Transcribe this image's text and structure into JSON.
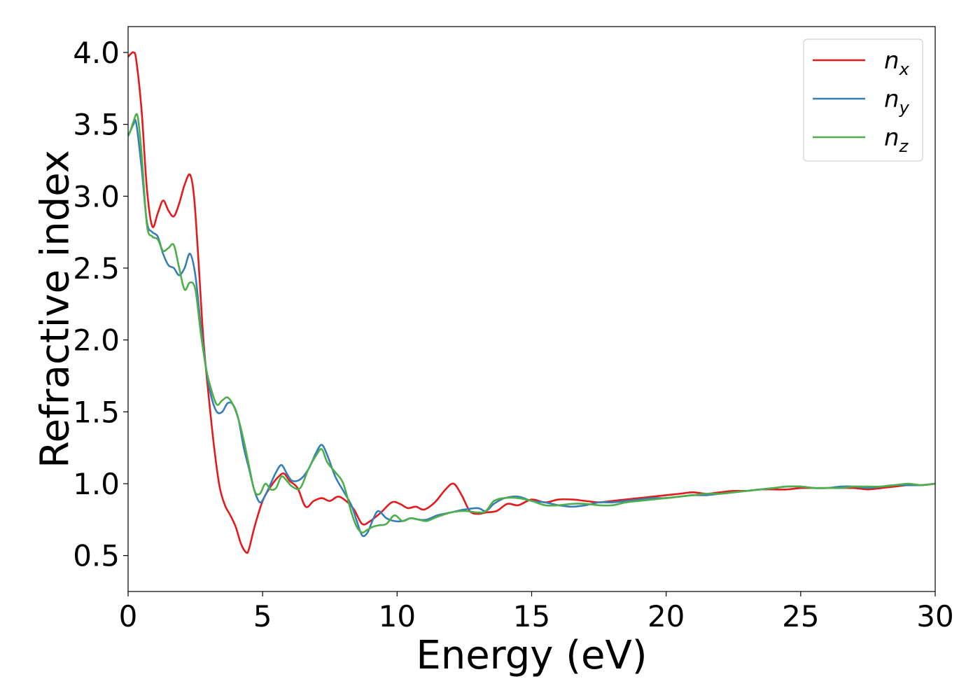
{
  "chart_data": {
    "type": "line",
    "title": "",
    "xlabel": "Energy (eV)",
    "ylabel": "Refractive index",
    "xlim": [
      0,
      30
    ],
    "ylim": [
      0.25,
      4.18
    ],
    "xticks": [
      0,
      5,
      10,
      15,
      20,
      25,
      30
    ],
    "xtick_labels": [
      "0",
      "5",
      "10",
      "15",
      "20",
      "25",
      "30"
    ],
    "yticks": [
      0.5,
      1.0,
      1.5,
      2.0,
      2.5,
      3.0,
      3.5,
      4.0
    ],
    "ytick_labels": [
      "0.5",
      "1.0",
      "1.5",
      "2.0",
      "2.5",
      "3.0",
      "3.5",
      "4.0"
    ],
    "grid": false,
    "legend_position": "top-right",
    "series": [
      {
        "name": "n_x",
        "label_base": "n",
        "label_sub": "x",
        "color": "#e41a1c",
        "x": [
          0,
          0.1,
          0.2,
          0.3,
          0.5,
          0.7,
          0.9,
          1.1,
          1.3,
          1.5,
          1.7,
          1.9,
          2.1,
          2.3,
          2.45,
          2.6,
          2.8,
          3.0,
          3.2,
          3.4,
          3.6,
          3.8,
          4.0,
          4.2,
          4.4,
          4.5,
          4.7,
          5.0,
          5.3,
          5.6,
          5.8,
          6.0,
          6.3,
          6.6,
          6.9,
          7.2,
          7.5,
          7.8,
          8.1,
          8.4,
          8.7,
          9.0,
          9.4,
          9.8,
          10.1,
          10.4,
          10.7,
          11.0,
          11.4,
          11.8,
          12.1,
          12.4,
          12.7,
          13.0,
          13.3,
          13.7,
          14.1,
          14.5,
          15.0,
          15.5,
          16.0,
          16.5,
          17.0,
          17.5,
          18.0,
          18.5,
          19.0,
          19.5,
          20.0,
          20.5,
          21.0,
          21.5,
          22.0,
          22.5,
          23.0,
          23.5,
          24.0,
          24.5,
          25.0,
          25.5,
          26.0,
          26.5,
          27.0,
          27.5,
          28.0,
          28.5,
          29.0,
          29.5,
          30.0
        ],
        "y": [
          3.97,
          3.99,
          4.0,
          3.95,
          3.6,
          3.05,
          2.79,
          2.88,
          2.97,
          2.9,
          2.86,
          2.95,
          3.08,
          3.15,
          3.0,
          2.6,
          2.0,
          1.6,
          1.25,
          0.98,
          0.85,
          0.78,
          0.7,
          0.58,
          0.52,
          0.55,
          0.7,
          0.88,
          0.98,
          1.05,
          1.07,
          1.02,
          0.97,
          0.84,
          0.88,
          0.9,
          0.88,
          0.91,
          0.88,
          0.82,
          0.72,
          0.74,
          0.8,
          0.87,
          0.86,
          0.83,
          0.84,
          0.82,
          0.87,
          0.96,
          1.0,
          0.92,
          0.81,
          0.79,
          0.8,
          0.81,
          0.86,
          0.85,
          0.89,
          0.87,
          0.89,
          0.89,
          0.88,
          0.87,
          0.88,
          0.89,
          0.9,
          0.91,
          0.92,
          0.93,
          0.94,
          0.93,
          0.94,
          0.95,
          0.95,
          0.96,
          0.96,
          0.96,
          0.97,
          0.97,
          0.97,
          0.97,
          0.97,
          0.96,
          0.97,
          0.98,
          0.99,
          0.99,
          1.0
        ]
      },
      {
        "name": "n_y",
        "label_base": "n",
        "label_sub": "y",
        "color": "#377eb8",
        "x": [
          0,
          0.1,
          0.2,
          0.3,
          0.5,
          0.7,
          0.9,
          1.1,
          1.3,
          1.5,
          1.7,
          1.9,
          2.1,
          2.3,
          2.5,
          2.7,
          2.9,
          3.1,
          3.3,
          3.5,
          3.7,
          3.9,
          4.1,
          4.3,
          4.5,
          4.7,
          4.9,
          5.1,
          5.3,
          5.5,
          5.7,
          5.9,
          6.1,
          6.4,
          6.7,
          7.0,
          7.2,
          7.4,
          7.7,
          8.0,
          8.3,
          8.5,
          8.7,
          8.9,
          9.1,
          9.3,
          9.6,
          9.9,
          10.2,
          10.5,
          10.8,
          11.1,
          11.5,
          12.0,
          12.5,
          13.0,
          13.3,
          13.6,
          14.0,
          14.5,
          15.0,
          15.5,
          16.0,
          16.5,
          17.0,
          17.5,
          18.0,
          18.5,
          19.0,
          19.5,
          20.0,
          20.5,
          21.0,
          21.5,
          22.0,
          22.5,
          23.0,
          23.5,
          24.0,
          24.5,
          25.0,
          25.5,
          26.0,
          26.5,
          27.0,
          27.5,
          28.0,
          28.5,
          29.0,
          29.5,
          30.0
        ],
        "y": [
          3.42,
          3.46,
          3.5,
          3.51,
          3.2,
          2.82,
          2.75,
          2.72,
          2.6,
          2.52,
          2.5,
          2.45,
          2.5,
          2.6,
          2.45,
          2.1,
          1.8,
          1.6,
          1.5,
          1.5,
          1.56,
          1.55,
          1.45,
          1.25,
          1.1,
          0.95,
          0.87,
          0.92,
          1.0,
          1.08,
          1.13,
          1.07,
          1.02,
          1.03,
          1.1,
          1.22,
          1.27,
          1.2,
          1.05,
          0.95,
          0.85,
          0.74,
          0.64,
          0.66,
          0.75,
          0.81,
          0.76,
          0.74,
          0.74,
          0.76,
          0.75,
          0.75,
          0.78,
          0.8,
          0.82,
          0.83,
          0.81,
          0.86,
          0.9,
          0.91,
          0.88,
          0.87,
          0.85,
          0.84,
          0.85,
          0.87,
          0.87,
          0.88,
          0.89,
          0.9,
          0.9,
          0.91,
          0.92,
          0.92,
          0.93,
          0.94,
          0.95,
          0.96,
          0.97,
          0.98,
          0.98,
          0.97,
          0.97,
          0.98,
          0.98,
          0.97,
          0.98,
          0.99,
          0.99,
          0.99,
          1.0
        ]
      },
      {
        "name": "n_z",
        "label_base": "n",
        "label_sub": "z",
        "color": "#4daf4a",
        "x": [
          0,
          0.1,
          0.2,
          0.35,
          0.5,
          0.7,
          0.9,
          1.1,
          1.3,
          1.5,
          1.7,
          1.9,
          2.1,
          2.3,
          2.5,
          2.7,
          2.9,
          3.1,
          3.3,
          3.5,
          3.7,
          3.9,
          4.1,
          4.3,
          4.5,
          4.7,
          4.9,
          5.1,
          5.3,
          5.5,
          5.7,
          5.9,
          6.1,
          6.4,
          6.7,
          7.0,
          7.2,
          7.4,
          7.7,
          8.0,
          8.3,
          8.5,
          8.7,
          8.9,
          9.1,
          9.3,
          9.6,
          9.9,
          10.2,
          10.5,
          10.8,
          11.1,
          11.5,
          12.0,
          12.5,
          13.0,
          13.3,
          13.6,
          14.0,
          14.5,
          15.0,
          15.5,
          16.0,
          16.5,
          17.0,
          17.5,
          18.0,
          18.5,
          19.0,
          19.5,
          20.0,
          20.5,
          21.0,
          21.5,
          22.0,
          22.5,
          23.0,
          23.5,
          24.0,
          24.5,
          25.0,
          25.5,
          26.0,
          26.5,
          27.0,
          27.5,
          28.0,
          28.5,
          29.0,
          29.5,
          30.0
        ],
        "y": [
          3.42,
          3.46,
          3.52,
          3.56,
          3.3,
          2.8,
          2.72,
          2.7,
          2.62,
          2.64,
          2.66,
          2.5,
          2.35,
          2.4,
          2.35,
          2.05,
          1.8,
          1.65,
          1.55,
          1.58,
          1.6,
          1.55,
          1.45,
          1.3,
          1.12,
          0.95,
          0.93,
          1.0,
          0.96,
          0.97,
          1.05,
          1.02,
          0.98,
          0.97,
          1.1,
          1.2,
          1.24,
          1.15,
          1.08,
          1.0,
          0.8,
          0.7,
          0.66,
          0.68,
          0.7,
          0.71,
          0.72,
          0.78,
          0.74,
          0.76,
          0.75,
          0.74,
          0.77,
          0.8,
          0.81,
          0.8,
          0.81,
          0.88,
          0.9,
          0.9,
          0.88,
          0.85,
          0.85,
          0.86,
          0.86,
          0.85,
          0.85,
          0.87,
          0.88,
          0.89,
          0.9,
          0.91,
          0.92,
          0.93,
          0.93,
          0.94,
          0.95,
          0.96,
          0.97,
          0.98,
          0.98,
          0.97,
          0.97,
          0.97,
          0.98,
          0.98,
          0.98,
          0.99,
          1.0,
          0.99,
          1.0
        ]
      }
    ]
  }
}
